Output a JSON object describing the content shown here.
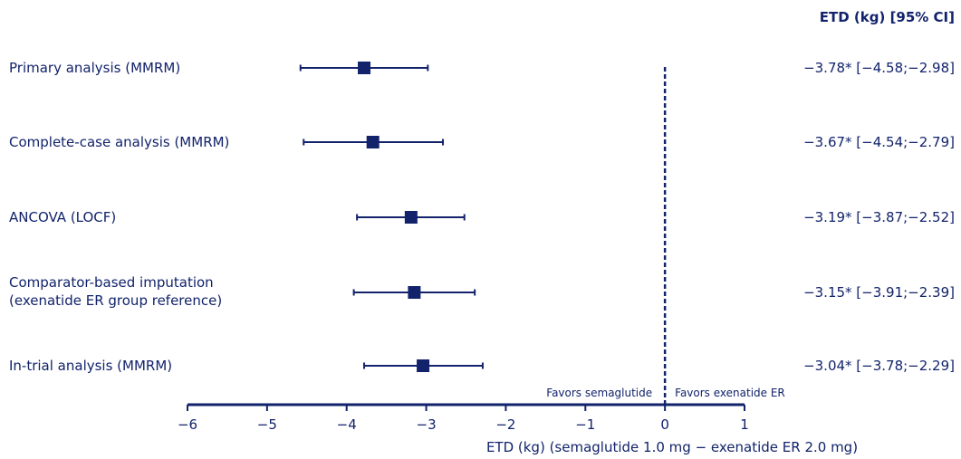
{
  "colors": {
    "primary": "#12236b"
  },
  "chart_data": {
    "type": "forest",
    "header": "ETD (kg) [95% CI]",
    "xlabel": "ETD (kg) (semaglutide 1.0 mg − exenatide ER 2.0 mg)",
    "xlim": [
      -6,
      1
    ],
    "xticks": [
      "−6",
      "−5",
      "−4",
      "−3",
      "−2",
      "−1",
      "0",
      "1"
    ],
    "reference_line": 0,
    "favors_left": "Favors semaglutide",
    "favors_right": "Favors exenatide ER",
    "rows": [
      {
        "label": [
          "Primary analysis (MMRM)"
        ],
        "estimate": -3.78,
        "lower": -4.58,
        "upper": -2.98,
        "text": "−3.78* [−4.58;−2.98]"
      },
      {
        "label": [
          "Complete-case analysis (MMRM)"
        ],
        "estimate": -3.67,
        "lower": -4.54,
        "upper": -2.79,
        "text": "−3.67* [−4.54;−2.79]"
      },
      {
        "label": [
          "ANCOVA (LOCF)"
        ],
        "estimate": -3.19,
        "lower": -3.87,
        "upper": -2.52,
        "text": "−3.19* [−3.87;−2.52]"
      },
      {
        "label": [
          "Comparator-based imputation",
          "(exenatide ER group reference)"
        ],
        "estimate": -3.15,
        "lower": -3.91,
        "upper": -2.39,
        "text": "−3.15* [−3.91;−2.39]"
      },
      {
        "label": [
          "In-trial analysis (MMRM)"
        ],
        "estimate": -3.04,
        "lower": -3.78,
        "upper": -2.29,
        "text": "−3.04* [−3.78;−2.29]"
      }
    ]
  }
}
